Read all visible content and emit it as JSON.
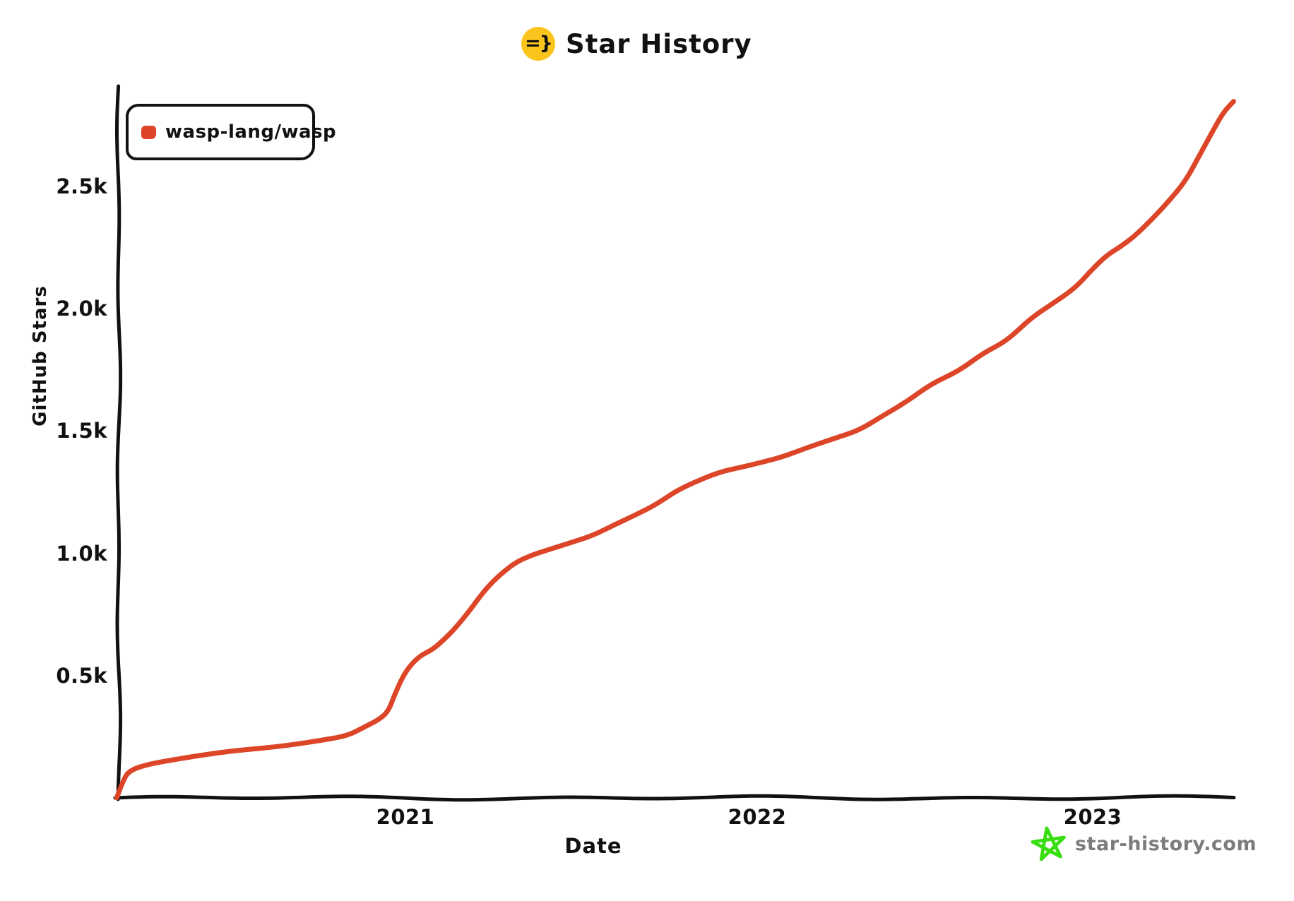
{
  "header": {
    "logo_text": "=}",
    "logo_color": "#fcc51d",
    "title": "Star History"
  },
  "legend": {
    "marker_color": "#dc4528",
    "series_label": "wasp-lang/wasp"
  },
  "chart_data": {
    "type": "line",
    "title": "Star History",
    "xlabel": "Date",
    "ylabel": "GitHub Stars",
    "legend_position": "top-left",
    "grid": false,
    "line_style": "hand-drawn",
    "x_axis": {
      "type": "time",
      "tick_labels": [
        "2021",
        "2022",
        "2023"
      ],
      "range_decimal_years": [
        2020.16,
        2023.45
      ]
    },
    "y_axis": {
      "tick_labels": [
        "0.5k",
        "1.0k",
        "1.5k",
        "2.0k",
        "2.5k"
      ],
      "tick_values": [
        500,
        1000,
        1500,
        2000,
        2500
      ],
      "range": [
        0,
        2900
      ]
    },
    "series": [
      {
        "name": "wasp-lang/wasp",
        "color": "#dc4528",
        "points_decimal_year_stars": [
          [
            2020.16,
            0
          ],
          [
            2020.18,
            80
          ],
          [
            2020.2,
            115
          ],
          [
            2020.25,
            140
          ],
          [
            2020.33,
            158
          ],
          [
            2020.42,
            175
          ],
          [
            2020.5,
            192
          ],
          [
            2020.58,
            205
          ],
          [
            2020.67,
            218
          ],
          [
            2020.75,
            232
          ],
          [
            2020.83,
            252
          ],
          [
            2020.88,
            290
          ],
          [
            2020.92,
            320
          ],
          [
            2020.95,
            355
          ],
          [
            2020.97,
            430
          ],
          [
            2021.0,
            520
          ],
          [
            2021.04,
            580
          ],
          [
            2021.08,
            605
          ],
          [
            2021.12,
            655
          ],
          [
            2021.15,
            700
          ],
          [
            2021.19,
            770
          ],
          [
            2021.22,
            830
          ],
          [
            2021.25,
            880
          ],
          [
            2021.28,
            920
          ],
          [
            2021.32,
            965
          ],
          [
            2021.37,
            995
          ],
          [
            2021.42,
            1015
          ],
          [
            2021.49,
            1045
          ],
          [
            2021.55,
            1075
          ],
          [
            2021.61,
            1120
          ],
          [
            2021.67,
            1160
          ],
          [
            2021.73,
            1200
          ],
          [
            2021.79,
            1255
          ],
          [
            2021.86,
            1300
          ],
          [
            2021.92,
            1335
          ],
          [
            2021.98,
            1355
          ],
          [
            2022.04,
            1375
          ],
          [
            2022.1,
            1395
          ],
          [
            2022.17,
            1430
          ],
          [
            2022.25,
            1470
          ],
          [
            2022.32,
            1505
          ],
          [
            2022.39,
            1565
          ],
          [
            2022.46,
            1620
          ],
          [
            2022.53,
            1690
          ],
          [
            2022.61,
            1745
          ],
          [
            2022.68,
            1820
          ],
          [
            2022.75,
            1870
          ],
          [
            2022.82,
            1960
          ],
          [
            2022.88,
            2015
          ],
          [
            2022.95,
            2085
          ],
          [
            2023.0,
            2165
          ],
          [
            2023.04,
            2220
          ],
          [
            2023.08,
            2255
          ],
          [
            2023.12,
            2295
          ],
          [
            2023.17,
            2360
          ],
          [
            2023.22,
            2435
          ],
          [
            2023.27,
            2520
          ],
          [
            2023.31,
            2625
          ],
          [
            2023.35,
            2730
          ],
          [
            2023.38,
            2805
          ],
          [
            2023.41,
            2850
          ]
        ]
      }
    ]
  },
  "footer": {
    "site_label": "star-history.com",
    "star_icon_color": "#38dd12",
    "text_color": "#7c7c7c"
  }
}
